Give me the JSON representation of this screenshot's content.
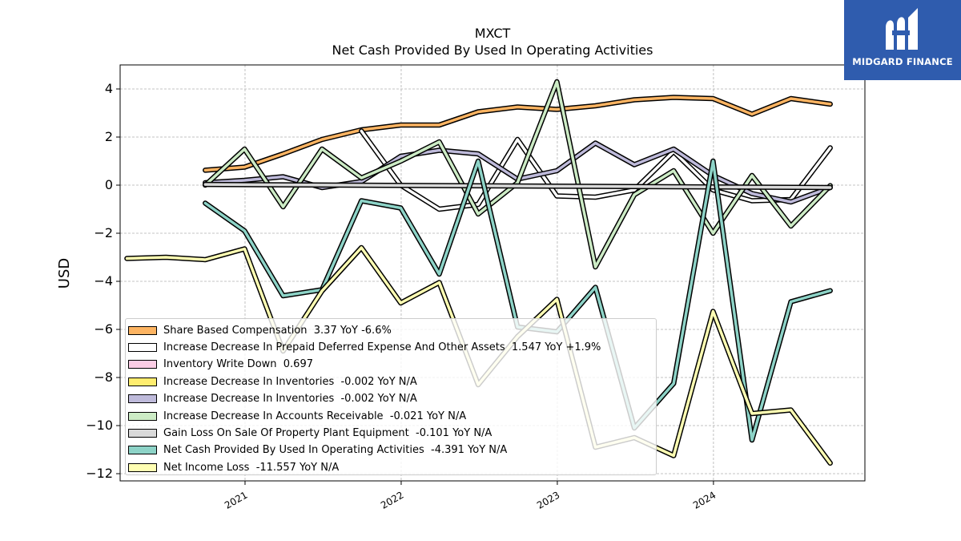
{
  "chart_data": {
    "type": "line",
    "title": "MXCT",
    "subtitle": "Net Cash Provided By Used In Operating Activities",
    "ylabel": "USD",
    "xlabel": "",
    "ylim": [
      -12.3,
      5.0
    ],
    "xlim": [
      "2020-03-15",
      "2024-12-20"
    ],
    "x_ticks": [
      "2021",
      "2022",
      "2023",
      "2024"
    ],
    "y_ticks": [
      4,
      2,
      0,
      -2,
      -4,
      -6,
      -8,
      -10,
      -12
    ],
    "y_tick_labels": [
      "4",
      "2",
      "0",
      "−2",
      "−4",
      "−6",
      "−8",
      "−10",
      "−12"
    ],
    "grid": true,
    "legend_position": "lower-left",
    "series": [
      {
        "name": "Share Based Compensation  3.37 YoY -6.6%",
        "color": "#fdb462",
        "points": [
          [
            "2020-09-30",
            0.62
          ],
          [
            "2020-12-31",
            0.75
          ],
          [
            "2021-03-31",
            1.3
          ],
          [
            "2021-06-30",
            1.9
          ],
          [
            "2021-09-30",
            2.3
          ],
          [
            "2021-12-31",
            2.5
          ],
          [
            "2022-03-31",
            2.5
          ],
          [
            "2022-06-30",
            3.05
          ],
          [
            "2022-09-30",
            3.25
          ],
          [
            "2022-12-31",
            3.15
          ],
          [
            "2023-03-31",
            3.3
          ],
          [
            "2023-06-30",
            3.55
          ],
          [
            "2023-09-30",
            3.65
          ],
          [
            "2023-12-31",
            3.6
          ],
          [
            "2024-03-31",
            2.95
          ],
          [
            "2024-06-30",
            3.6
          ],
          [
            "2024-09-30",
            3.37
          ]
        ]
      },
      {
        "name": "Increase Decrease In Prepaid Deferred Expense And Other Assets  1.547 YoY +1.9%",
        "color": "#ffffff",
        "points": [
          [
            "2021-09-30",
            2.25
          ],
          [
            "2021-12-31",
            0.0
          ],
          [
            "2022-03-31",
            -1.0
          ],
          [
            "2022-06-30",
            -0.8
          ],
          [
            "2022-09-30",
            1.9
          ],
          [
            "2022-12-31",
            -0.45
          ],
          [
            "2023-03-31",
            -0.5
          ],
          [
            "2023-06-30",
            -0.2
          ],
          [
            "2023-09-30",
            1.4
          ],
          [
            "2023-12-31",
            -0.2
          ],
          [
            "2024-03-31",
            -0.65
          ],
          [
            "2024-06-30",
            -0.6
          ],
          [
            "2024-09-30",
            1.55
          ]
        ]
      },
      {
        "name": "Inventory Write Down  0.697",
        "color": "#fccde5",
        "points": []
      },
      {
        "name": "Increase Decrease In Inventories  -0.002 YoY N/A",
        "color": "#ffed6f",
        "points": []
      },
      {
        "name": "Increase Decrease In Inventories  -0.002 YoY N/A",
        "color": "#bebada",
        "points": [
          [
            "2020-09-30",
            0.1
          ],
          [
            "2020-12-31",
            0.2
          ],
          [
            "2021-03-31",
            0.35
          ],
          [
            "2021-06-30",
            -0.1
          ],
          [
            "2021-09-30",
            0.15
          ],
          [
            "2021-12-31",
            1.2
          ],
          [
            "2022-03-31",
            1.45
          ],
          [
            "2022-06-30",
            1.3
          ],
          [
            "2022-09-30",
            0.25
          ],
          [
            "2022-12-31",
            0.6
          ],
          [
            "2023-03-31",
            1.75
          ],
          [
            "2023-06-30",
            0.85
          ],
          [
            "2023-09-30",
            1.5
          ],
          [
            "2023-12-31",
            0.4
          ],
          [
            "2024-03-31",
            -0.35
          ],
          [
            "2024-06-30",
            -0.7
          ],
          [
            "2024-09-30",
            -0.1
          ]
        ]
      },
      {
        "name": "Increase Decrease In Accounts Receivable  -0.021 YoY N/A",
        "color": "#ccebc5",
        "points": [
          [
            "2020-09-30",
            0.0
          ],
          [
            "2020-12-31",
            1.5
          ],
          [
            "2021-03-31",
            -0.9
          ],
          [
            "2021-06-30",
            1.5
          ],
          [
            "2021-09-30",
            0.3
          ],
          [
            "2021-12-31",
            1.0
          ],
          [
            "2022-03-31",
            1.8
          ],
          [
            "2022-06-30",
            -1.2
          ],
          [
            "2022-09-30",
            0.1
          ],
          [
            "2022-12-31",
            4.3
          ],
          [
            "2023-03-31",
            -3.4
          ],
          [
            "2023-06-30",
            -0.4
          ],
          [
            "2023-09-30",
            0.6
          ],
          [
            "2023-12-31",
            -2.0
          ],
          [
            "2024-03-31",
            0.4
          ],
          [
            "2024-06-30",
            -1.7
          ],
          [
            "2024-09-30",
            -0.02
          ]
        ]
      },
      {
        "name": "Gain Loss On Sale Of Property Plant Equipment  -0.101 YoY N/A",
        "color": "#d9d9d9",
        "points": [
          [
            "2020-09-30",
            0.03
          ],
          [
            "2024-09-30",
            -0.1
          ]
        ]
      },
      {
        "name": "Net Cash Provided By Used In Operating Activities  -4.391 YoY N/A",
        "color": "#8dd3c7",
        "points": [
          [
            "2020-09-30",
            -0.75
          ],
          [
            "2020-12-31",
            -1.9
          ],
          [
            "2021-03-31",
            -4.6
          ],
          [
            "2021-06-30",
            -4.35
          ],
          [
            "2021-09-30",
            -0.65
          ],
          [
            "2021-12-31",
            -0.95
          ],
          [
            "2022-03-31",
            -3.7
          ],
          [
            "2022-06-30",
            1.0
          ],
          [
            "2022-09-30",
            -5.9
          ],
          [
            "2022-12-31",
            -6.1
          ],
          [
            "2023-03-31",
            -4.25
          ],
          [
            "2023-06-30",
            -10.1
          ],
          [
            "2023-09-30",
            -8.25
          ],
          [
            "2023-12-31",
            1.0
          ],
          [
            "2024-03-31",
            -10.6
          ],
          [
            "2024-06-30",
            -4.85
          ],
          [
            "2024-09-30",
            -4.39
          ]
        ]
      },
      {
        "name": "Net Income Loss  -11.557 YoY N/A",
        "color": "#ffffb3",
        "points": [
          [
            "2020-03-31",
            -3.05
          ],
          [
            "2020-06-30",
            -3.0
          ],
          [
            "2020-09-30",
            -3.1
          ],
          [
            "2020-12-31",
            -2.65
          ],
          [
            "2021-03-31",
            -6.9
          ],
          [
            "2021-06-30",
            -4.4
          ],
          [
            "2021-09-30",
            -2.6
          ],
          [
            "2021-12-31",
            -4.9
          ],
          [
            "2022-03-31",
            -4.05
          ],
          [
            "2022-06-30",
            -8.3
          ],
          [
            "2022-09-30",
            -6.3
          ],
          [
            "2022-12-31",
            -4.75
          ],
          [
            "2023-03-31",
            -10.9
          ],
          [
            "2023-06-30",
            -10.5
          ],
          [
            "2023-09-30",
            -11.25
          ],
          [
            "2023-12-31",
            -5.25
          ],
          [
            "2024-03-31",
            -9.5
          ],
          [
            "2024-06-30",
            -9.35
          ],
          [
            "2024-09-30",
            -11.56
          ]
        ]
      }
    ]
  },
  "logo": {
    "text": "MIDGARD FINANCE"
  }
}
